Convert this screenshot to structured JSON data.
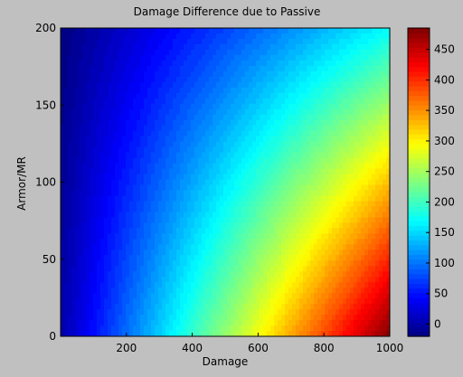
{
  "chart_data": {
    "type": "heatmap",
    "title": "Damage Difference due to Passive",
    "xlabel": "Damage",
    "ylabel": "Armor/MR",
    "xlim": [
      0,
      1000
    ],
    "ylim": [
      0,
      200
    ],
    "x_ticks": [
      200,
      400,
      600,
      800,
      1000
    ],
    "y_ticks": [
      0,
      50,
      100,
      150,
      200
    ],
    "colorbar": {
      "range": [
        -20,
        485
      ],
      "ticks": [
        0,
        50,
        100,
        150,
        200,
        250,
        300,
        350,
        400,
        450
      ],
      "colormap": "jet",
      "levels": 64
    },
    "contour_function": "value grows linearly with damage and falls with armor/MR; approx 485 at (1000, 0), 0 near x=0 and at the top-left",
    "samples": [
      {
        "x": 0,
        "y": 0,
        "value": 0
      },
      {
        "x": 1000,
        "y": 0,
        "value": 485
      },
      {
        "x": 1000,
        "y": 200,
        "value": 170
      },
      {
        "x": 0,
        "y": 200,
        "value": -20
      },
      {
        "x": 500,
        "y": 100,
        "value": 150
      }
    ],
    "grid": false,
    "colors": {
      "background": "#c0c0c0",
      "axes_border": "#000000"
    }
  }
}
